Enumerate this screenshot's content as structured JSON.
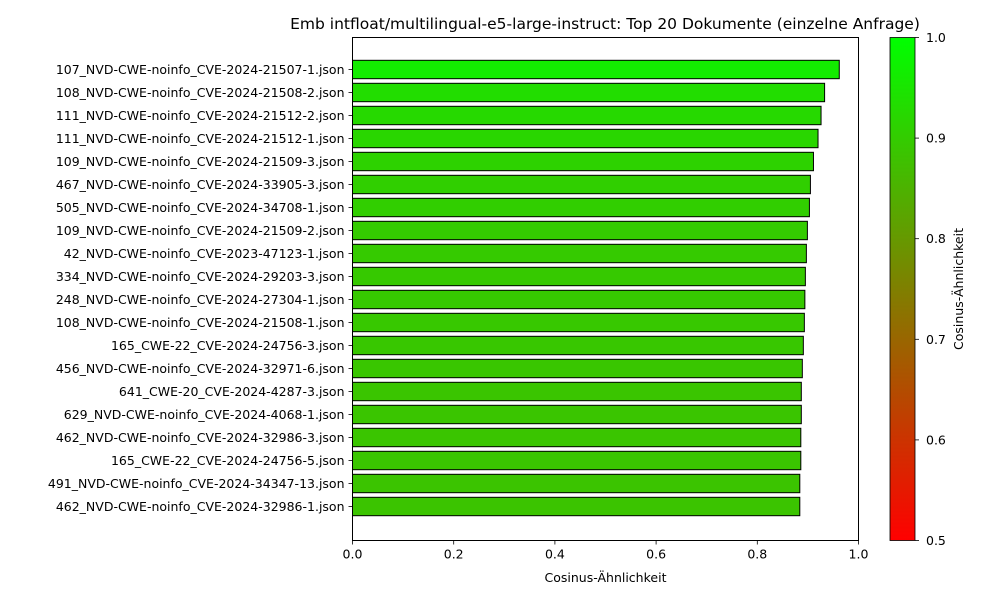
{
  "chart_data": {
    "type": "bar",
    "orientation": "horizontal",
    "title": "Emb intfloat/multilingual-e5-large-instruct: Top 20 Dokumente (einzelne Anfrage)",
    "xlabel": "Cosinus-Ähnlichkeit",
    "ylabel": "",
    "xlim": [
      0,
      1
    ],
    "xticks": [
      "0.0",
      "0.2",
      "0.4",
      "0.6",
      "0.8",
      "1.0"
    ],
    "grid": false,
    "categories": [
      "107_NVD-CWE-noinfo_CVE-2024-21507-1.json",
      "108_NVD-CWE-noinfo_CVE-2024-21508-2.json",
      "111_NVD-CWE-noinfo_CVE-2024-21512-2.json",
      "111_NVD-CWE-noinfo_CVE-2024-21512-1.json",
      "109_NVD-CWE-noinfo_CVE-2024-21509-3.json",
      "467_NVD-CWE-noinfo_CVE-2024-33905-3.json",
      "505_NVD-CWE-noinfo_CVE-2024-34708-1.json",
      "109_NVD-CWE-noinfo_CVE-2024-21509-2.json",
      "42_NVD-CWE-noinfo_CVE-2023-47123-1.json",
      "334_NVD-CWE-noinfo_CVE-2024-29203-3.json",
      "248_NVD-CWE-noinfo_CVE-2024-27304-1.json",
      "108_NVD-CWE-noinfo_CVE-2024-21508-1.json",
      "165_CWE-22_CVE-2024-24756-3.json",
      "456_NVD-CWE-noinfo_CVE-2024-32971-6.json",
      "641_CWE-20_CVE-2024-4287-3.json",
      "629_NVD-CWE-noinfo_CVE-2024-4068-1.json",
      "462_NVD-CWE-noinfo_CVE-2024-32986-3.json",
      "165_CWE-22_CVE-2024-24756-5.json",
      "491_NVD-CWE-noinfo_CVE-2024-34347-13.json",
      "462_NVD-CWE-noinfo_CVE-2024-32986-1.json"
    ],
    "values": [
      0.962,
      0.933,
      0.926,
      0.92,
      0.911,
      0.905,
      0.903,
      0.899,
      0.897,
      0.895,
      0.894,
      0.893,
      0.891,
      0.889,
      0.887,
      0.887,
      0.886,
      0.886,
      0.884,
      0.884
    ],
    "colorbar": {
      "label": "Cosinus-Ähnlichkeit",
      "range": [
        0.5,
        1.0
      ],
      "ticks": [
        "0.5",
        "0.6",
        "0.7",
        "0.8",
        "0.9",
        "1.0"
      ],
      "color_low": "#ff0000",
      "color_high": "#00ff00"
    },
    "bar_edge_color": "#000000"
  }
}
